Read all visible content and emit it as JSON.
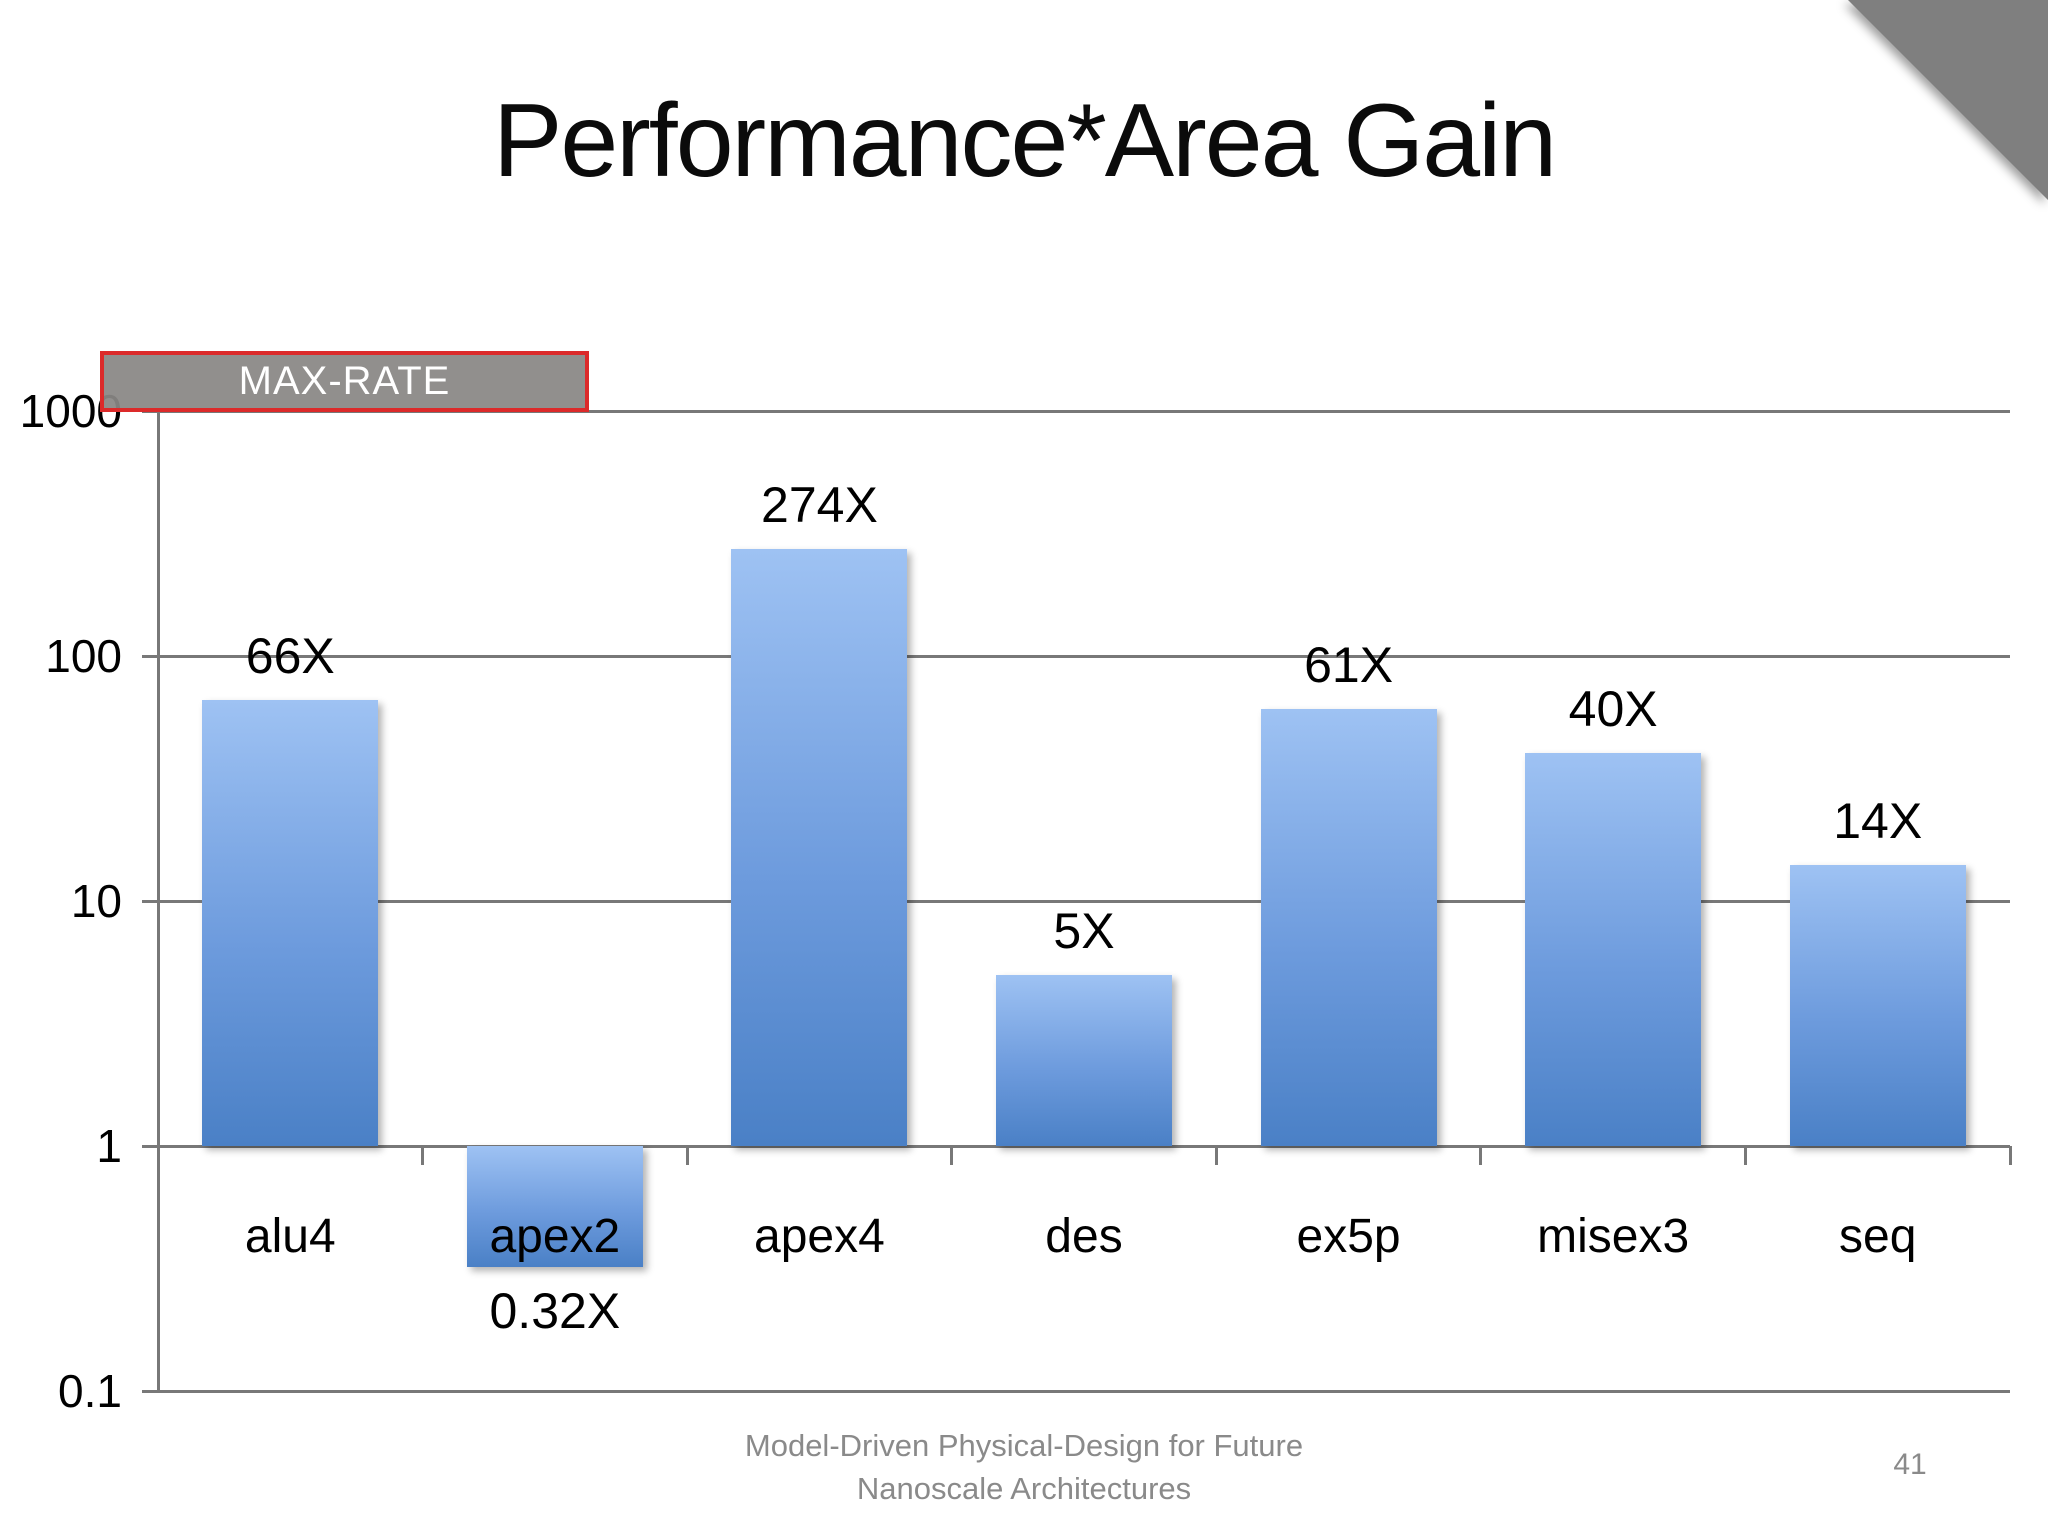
{
  "slide": {
    "title": "Performance*Area Gain",
    "footer_line1": "Model-Driven Physical-Design for Future",
    "footer_line2": "Nanoscale Architectures",
    "page_number": "41"
  },
  "legend": {
    "label": "MAX-RATE",
    "fill_color": "#898785",
    "border_color": "#dc2a2a",
    "text_color": "#ffffff"
  },
  "chart_data": {
    "type": "bar",
    "scale": "log10",
    "title": "",
    "xlabel": "",
    "ylabel": "",
    "series_name": "MAX-RATE",
    "categories": [
      "alu4",
      "apex2",
      "apex4",
      "des",
      "ex5p",
      "misex3",
      "seq"
    ],
    "values": [
      66,
      0.32,
      274,
      5,
      61,
      40,
      14
    ],
    "value_labels": [
      "66X",
      "0.32X",
      "274X",
      "5X",
      "61X",
      "40X",
      "14X"
    ],
    "y_ticks": [
      "1000",
      "100",
      "10",
      "1",
      "0.1"
    ],
    "ylim": [
      0.1,
      1000
    ],
    "baseline": 1,
    "grid": true,
    "legend_position": "top-left",
    "bar_color_top": "#9ec2f3",
    "bar_color_mid": "#6d9bdd",
    "bar_color_bottom": "#4a80c6",
    "gridline_color": "#787878",
    "axis_color": "#787878"
  },
  "colors": {
    "corner_triangle": "#7f7f7f",
    "footer_text": "#8a8a8a",
    "title_text": "#0b0b0b"
  }
}
